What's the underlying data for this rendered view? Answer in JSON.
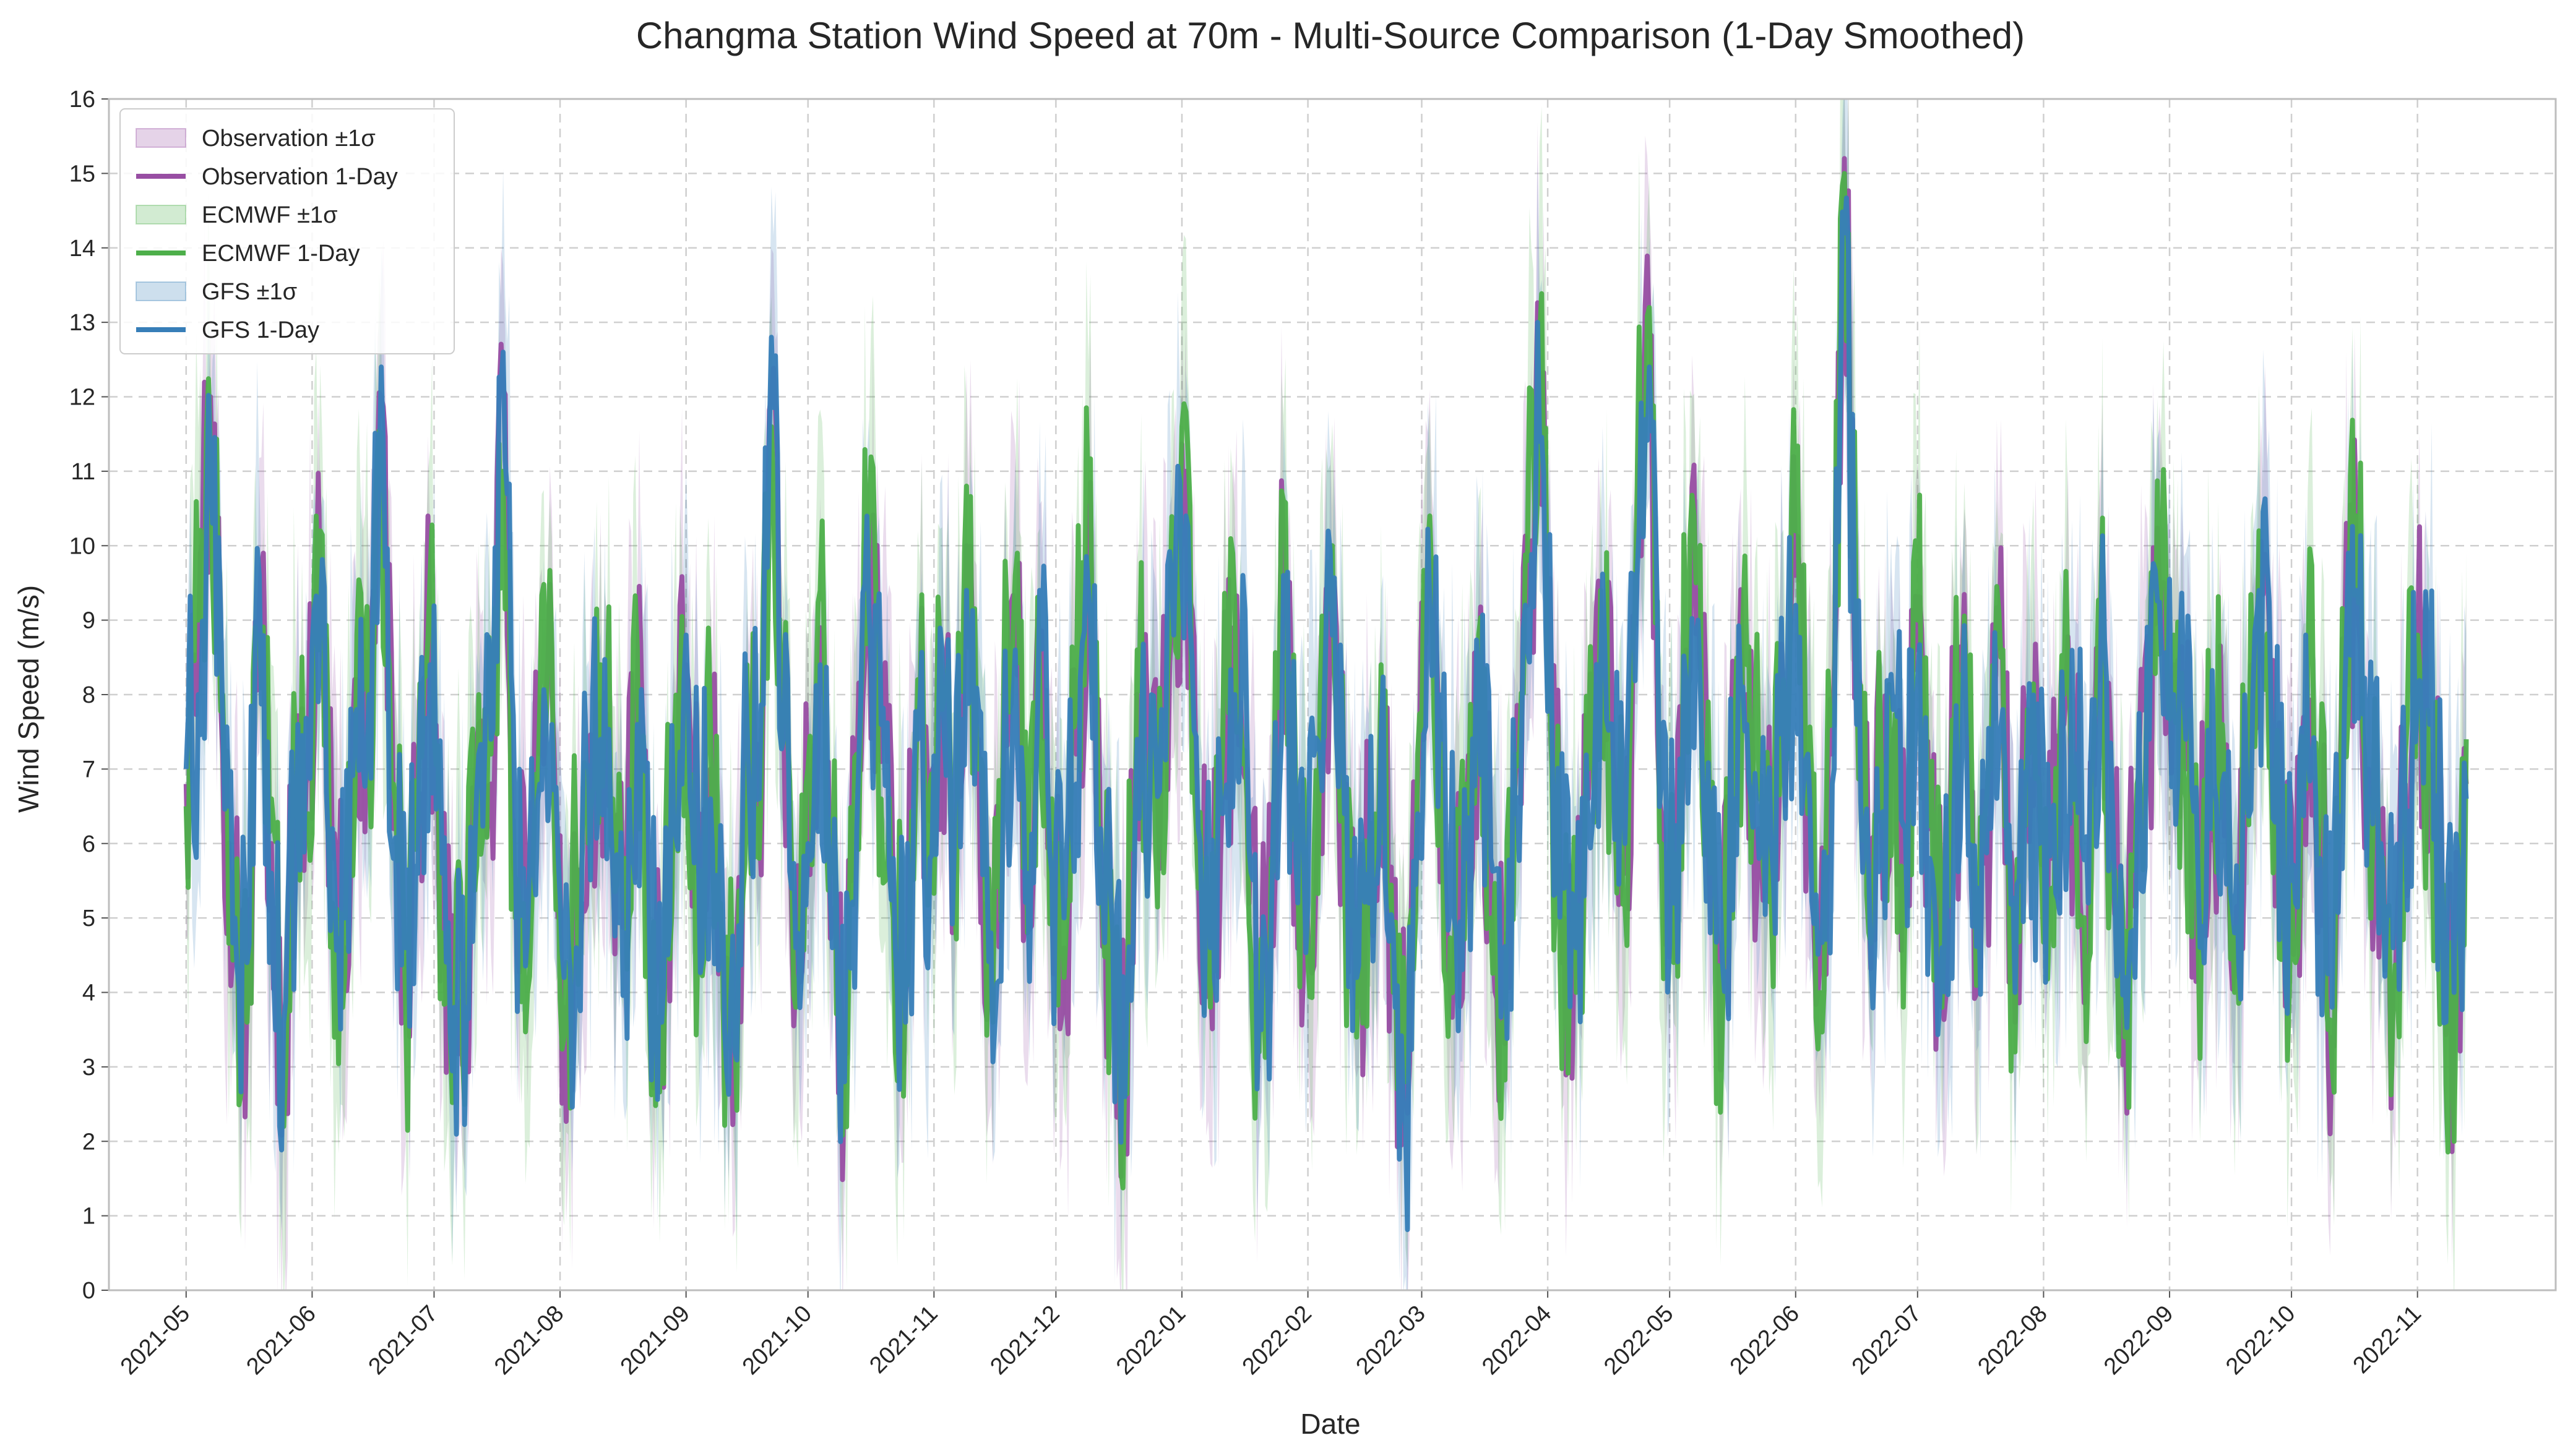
{
  "chart_data": {
    "type": "line",
    "title": "Changma Station Wind Speed at 70m - Multi-Source Comparison (1-Day Smoothed)",
    "xlabel": "Date",
    "ylabel": "Wind Speed (m/s)",
    "ylim": [
      0,
      16
    ],
    "xlim": [
      "2021-04-12",
      "2022-12-05"
    ],
    "y_ticks": [
      "0",
      "1",
      "2",
      "3",
      "4",
      "5",
      "6",
      "7",
      "8",
      "9",
      "10",
      "11",
      "12",
      "13",
      "14",
      "15",
      "16"
    ],
    "x_ticks": [
      "2021-05",
      "2021-06",
      "2021-07",
      "2021-08",
      "2021-09",
      "2021-10",
      "2021-11",
      "2021-12",
      "2022-01",
      "2022-02",
      "2022-03",
      "2022-04",
      "2022-05",
      "2022-06",
      "2022-07",
      "2022-08",
      "2022-09",
      "2022-10",
      "2022-11"
    ],
    "grid": true,
    "legend_position": "top-left",
    "legend": [
      {
        "label": "Observation ±1σ",
        "kind": "band",
        "color": "#984ea3"
      },
      {
        "label": "Observation 1-Day",
        "kind": "line",
        "color": "#984ea3"
      },
      {
        "label": "ECMWF ±1σ",
        "kind": "band",
        "color": "#4daf4a"
      },
      {
        "label": "ECMWF 1-Day",
        "kind": "line",
        "color": "#4daf4a"
      },
      {
        "label": "GFS ±1σ",
        "kind": "band",
        "color": "#377eb8"
      },
      {
        "label": "GFS 1-Day",
        "kind": "line",
        "color": "#377eb8"
      }
    ],
    "series": [
      {
        "name": "Observation 1-Day",
        "color": "#984ea3",
        "start": "2021-05-01",
        "step_days": 3,
        "values": [
          6.8,
          8.5,
          12.0,
          7.2,
          5.5,
          4.0,
          9.2,
          6.0,
          3.2,
          6.5,
          7.0,
          9.5,
          5.8,
          4.6,
          8.2,
          7.5,
          12.0,
          6.2,
          4.2,
          6.0,
          8.8,
          5.2,
          3.4,
          4.1,
          7.6,
          6.8,
          12.1,
          5.5,
          4.4,
          7.2,
          8.0,
          3.8,
          5.0,
          6.5,
          7.9,
          6.1,
          5.2,
          8.1,
          4.3,
          3.9,
          6.7,
          8.4,
          5.6,
          7.0,
          4.8,
          3.4,
          8.0,
          6.2,
          12.0,
          7.8,
          4.2,
          6.5,
          8.9,
          5.0,
          3.2,
          6.7,
          9.6,
          7.1,
          5.4,
          4.0,
          7.8,
          6.3,
          8.2,
          5.6,
          10.0,
          7.4,
          4.4,
          6.8,
          9.0,
          5.2,
          8.8,
          6.0,
          4.6,
          7.2,
          9.9,
          5.8,
          4.4,
          3.0,
          8.0,
          6.6,
          7.4,
          9.3,
          11.0,
          5.8,
          4.2,
          6.8,
          8.6,
          7.0,
          3.6,
          5.4,
          10.0,
          6.2,
          4.8,
          7.6,
          9.4,
          6.0,
          3.8,
          5.6,
          7.8,
          4.4,
          2.6,
          6.8,
          9.8,
          7.0,
          4.6,
          6.2,
          8.4,
          5.4,
          4.0,
          6.8,
          9.2,
          12.0,
          7.4,
          5.0,
          4.2,
          6.6,
          8.8,
          7.2,
          5.6,
          10.2,
          12.8,
          6.4,
          4.8,
          8.6,
          9.4,
          5.2,
          4.0,
          7.0,
          8.0,
          6.2,
          5.6,
          7.8,
          9.6,
          6.8,
          4.4,
          7.2,
          15.2,
          8.0,
          5.2,
          6.8,
          7.4,
          5.8,
          8.6,
          6.2,
          4.2,
          7.0,
          7.8,
          5.0,
          6.6,
          8.2,
          3.6,
          7.4,
          6.4,
          5.8,
          7.6,
          6.8,
          4.8,
          8.8,
          6.0,
          3.8,
          6.4,
          7.8,
          9.0,
          8.4,
          7.0,
          5.2,
          6.6,
          7.2,
          4.4,
          7.0,
          9.8,
          7.4,
          5.6,
          4.8,
          7.8,
          6.2,
          3.4,
          8.2,
          9.8,
          7.0,
          5.6,
          4.2,
          6.8,
          8.4,
          7.2,
          5.4,
          3.4,
          6.8
        ]
      },
      {
        "name": "ECMWF 1-Day",
        "color": "#4daf4a",
        "start": "2021-05-01",
        "step_days": 3,
        "values": [
          6.5,
          9.0,
          11.2,
          8.0,
          4.8,
          3.6,
          8.8,
          6.6,
          2.2,
          7.2,
          6.4,
          10.2,
          5.2,
          4.2,
          8.8,
          7.0,
          11.5,
          6.8,
          3.8,
          6.4,
          9.6,
          4.8,
          3.2,
          4.6,
          8.0,
          7.2,
          11.0,
          5.0,
          4.0,
          7.8,
          8.6,
          3.4,
          5.6,
          6.0,
          8.4,
          6.6,
          5.8,
          8.6,
          3.8,
          4.4,
          7.2,
          8.0,
          5.0,
          7.6,
          4.4,
          3.6,
          8.4,
          5.8,
          11.6,
          8.2,
          3.8,
          7.0,
          9.4,
          5.6,
          3.6,
          7.2,
          10.2,
          6.6,
          5.0,
          4.4,
          8.2,
          6.8,
          7.8,
          5.2,
          10.8,
          7.0,
          4.0,
          7.4,
          9.6,
          4.8,
          8.2,
          6.6,
          4.2,
          7.8,
          10.6,
          5.4,
          4.0,
          3.2,
          8.6,
          7.0,
          7.0,
          9.8,
          11.8,
          5.4,
          3.8,
          7.2,
          9.2,
          6.6,
          3.2,
          5.8,
          10.6,
          6.8,
          4.4,
          8.0,
          10.0,
          5.6,
          3.4,
          6.0,
          8.4,
          4.0,
          2.8,
          7.2,
          10.4,
          6.6,
          4.2,
          6.8,
          8.8,
          5.0,
          3.6,
          7.2,
          9.8,
          12.8,
          7.0,
          4.6,
          4.0,
          7.0,
          9.4,
          6.8,
          5.2,
          10.8,
          13.2,
          6.0,
          4.4,
          9.0,
          9.8,
          5.6,
          3.6,
          7.4,
          8.4,
          6.6,
          5.2,
          8.2,
          10.2,
          6.4,
          4.0,
          7.6,
          15.0,
          8.4,
          4.8,
          7.2,
          7.0,
          5.4,
          9.0,
          6.6,
          3.8,
          7.4,
          8.2,
          4.6,
          7.0,
          8.6,
          3.2,
          7.8,
          6.8,
          5.4,
          8.0,
          6.4,
          4.4,
          9.2,
          5.6,
          3.4,
          6.8,
          8.2,
          9.6,
          8.8,
          6.6,
          4.8,
          7.0,
          7.6,
          4.0,
          7.4,
          10.2,
          7.0,
          5.2,
          4.4,
          8.2,
          6.6,
          3.0,
          8.6,
          10.4,
          6.6,
          5.2,
          3.8,
          7.2,
          8.8,
          6.8,
          5.0,
          2.0,
          7.4
        ]
      },
      {
        "name": "GFS 1-Day",
        "color": "#377eb8",
        "start": "2021-05-01",
        "step_days": 3,
        "values": [
          7.0,
          8.0,
          11.0,
          7.6,
          5.0,
          4.4,
          9.6,
          5.6,
          3.6,
          6.0,
          7.4,
          9.0,
          6.2,
          5.0,
          7.8,
          8.0,
          12.4,
          5.8,
          4.6,
          5.6,
          8.4,
          5.6,
          3.8,
          3.8,
          7.2,
          7.4,
          12.6,
          6.0,
          4.8,
          6.8,
          7.6,
          4.2,
          4.6,
          7.0,
          7.4,
          5.6,
          4.8,
          7.6,
          4.8,
          3.6,
          6.2,
          8.8,
          6.0,
          6.6,
          5.2,
          3.2,
          7.6,
          6.6,
          12.8,
          7.4,
          4.6,
          6.0,
          8.4,
          4.6,
          2.8,
          6.2,
          9.2,
          7.6,
          5.8,
          3.6,
          7.4,
          5.8,
          8.6,
          6.0,
          9.4,
          7.8,
          4.8,
          6.4,
          8.6,
          5.6,
          9.4,
          5.6,
          5.0,
          6.8,
          9.4,
          6.2,
          4.8,
          2.6,
          7.4,
          6.2,
          7.8,
          8.8,
          10.4,
          6.2,
          4.6,
          6.4,
          8.0,
          7.4,
          4.0,
          5.0,
          9.6,
          5.8,
          5.2,
          7.2,
          8.8,
          6.4,
          4.2,
          5.2,
          7.4,
          4.8,
          2.2,
          6.4,
          9.2,
          7.4,
          5.0,
          5.8,
          8.0,
          5.8,
          4.4,
          6.4,
          8.6,
          11.4,
          7.8,
          5.4,
          4.6,
          6.2,
          8.2,
          7.6,
          6.0,
          9.6,
          12.4,
          6.8,
          5.2,
          8.2,
          9.0,
          4.8,
          4.4,
          6.6,
          7.6,
          5.8,
          6.0,
          7.4,
          9.2,
          7.2,
          4.8,
          6.8,
          14.2,
          7.6,
          5.6,
          6.4,
          7.8,
          6.2,
          8.2,
          5.8,
          4.6,
          6.6,
          7.4,
          5.4,
          6.2,
          7.8,
          4.0,
          7.0,
          6.0,
          6.2,
          7.2,
          7.2,
          5.2,
          8.4,
          6.4,
          4.2,
          6.0,
          7.4,
          8.6,
          8.0,
          7.4,
          5.6,
          6.2,
          6.8,
          4.8,
          6.6,
          9.4,
          7.8,
          6.0,
          5.2,
          7.4,
          5.8,
          3.8,
          7.8,
          9.4,
          7.4,
          6.0,
          4.6,
          6.4,
          8.0,
          7.6,
          5.8,
          4.0,
          6.6
        ]
      }
    ]
  }
}
